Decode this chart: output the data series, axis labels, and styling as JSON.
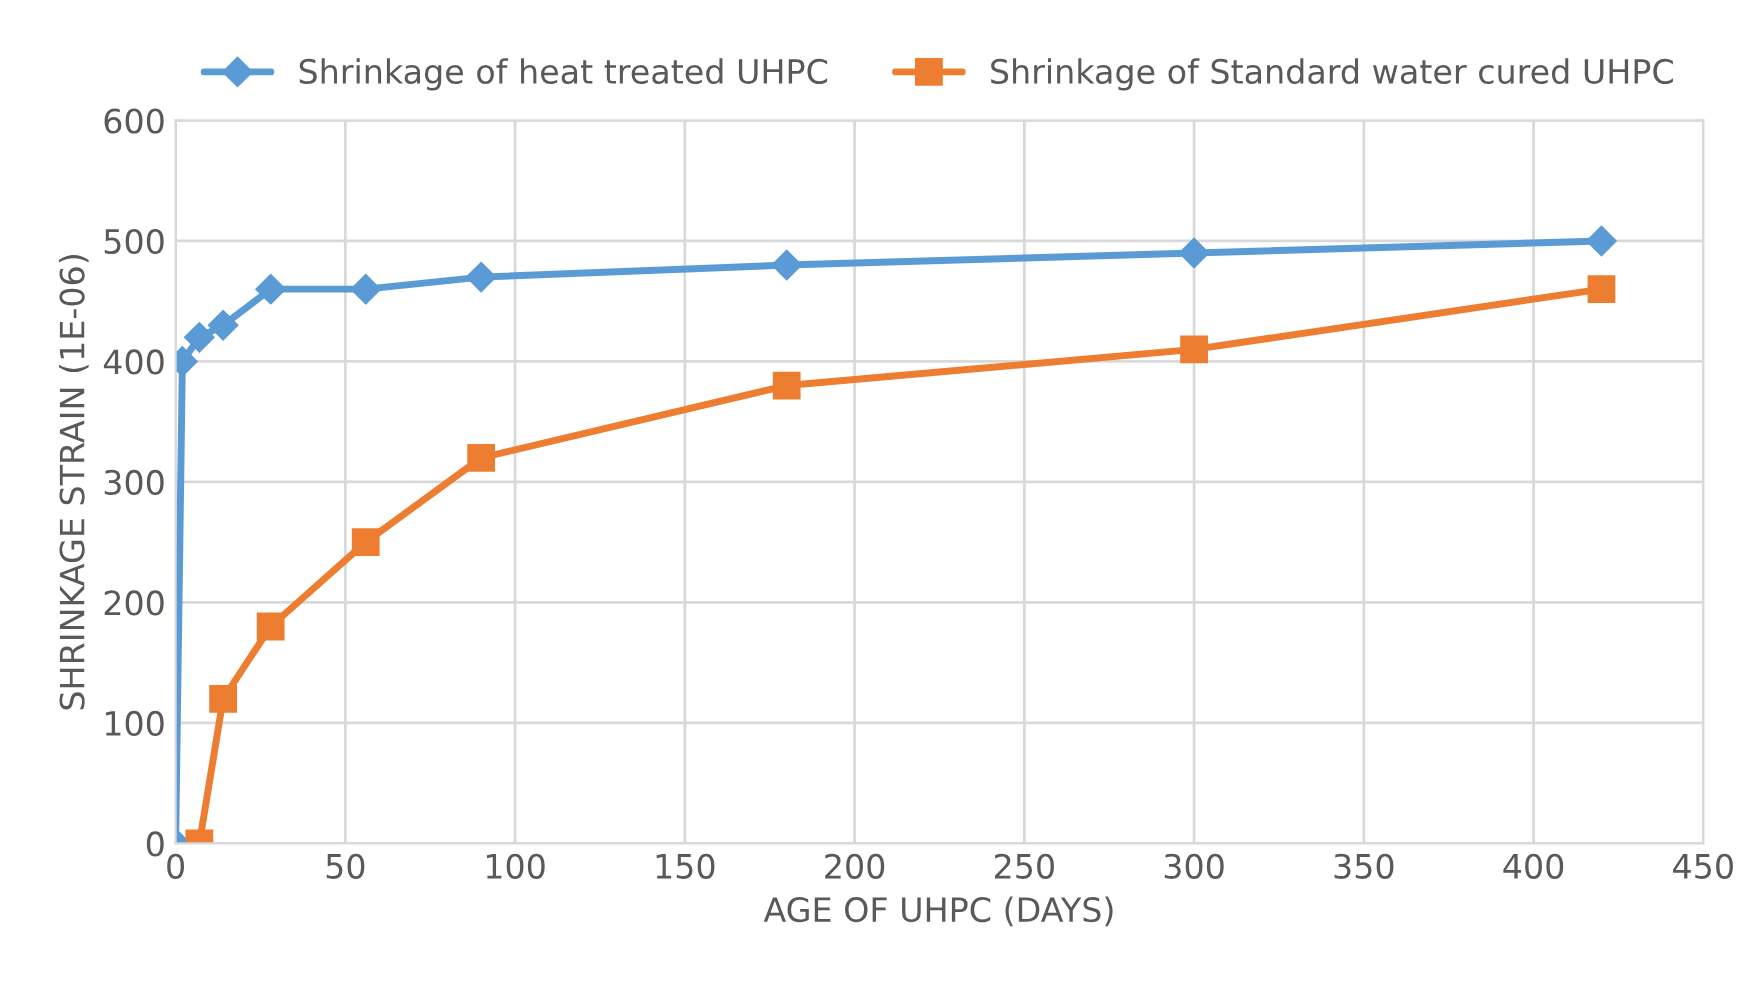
{
  "chart_data": {
    "type": "line",
    "xlabel": "AGE OF UHPC (DAYS)",
    "ylabel": "SHRINKAGE STRAIN (1E-06)",
    "xlim": [
      0,
      450
    ],
    "xticks": [
      0,
      50,
      100,
      150,
      200,
      250,
      300,
      350,
      400,
      450
    ],
    "ylim": [
      0,
      600
    ],
    "yticks": [
      0,
      100,
      200,
      300,
      400,
      500,
      600
    ],
    "grid": true,
    "legend": "top",
    "line_style": "solid",
    "series": [
      {
        "name": "Shrinkage of heat treated UHPC",
        "color": "#5b9bd5",
        "marker": "diamond",
        "x": [
          0,
          2,
          7,
          14,
          28,
          56,
          90,
          180,
          300,
          420
        ],
        "values": [
          0,
          400,
          420,
          430,
          460,
          460,
          470,
          480,
          490,
          500
        ]
      },
      {
        "name": "Shrinkage of Standard water cured UHPC",
        "color": "#ed7d31",
        "marker": "square",
        "x": [
          7,
          14,
          28,
          56,
          90,
          180,
          300,
          420
        ],
        "values": [
          0,
          120,
          180,
          250,
          320,
          380,
          410,
          460
        ]
      }
    ]
  }
}
